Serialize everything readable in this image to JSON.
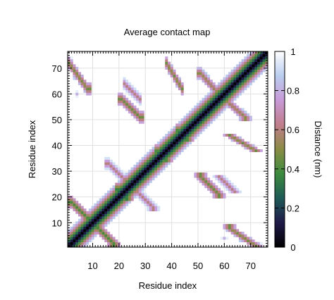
{
  "chart_data": {
    "type": "heatmap",
    "title": "Average contact map",
    "xlabel": "Residue index",
    "ylabel": "Residue index",
    "colorbar_label": "Distance (nm)",
    "xlim": [
      1,
      76
    ],
    "ylim": [
      1,
      76
    ],
    "x_ticks": [
      10,
      20,
      30,
      40,
      50,
      60,
      70
    ],
    "y_ticks": [
      10,
      20,
      30,
      40,
      50,
      60,
      70
    ],
    "colorbar_range": [
      0,
      1
    ],
    "colorbar_ticks": [
      "0",
      "0.2",
      "0.4",
      "0.6",
      "0.8",
      "1"
    ],
    "colorbar_tick_values": [
      0,
      0.2,
      0.4,
      0.6,
      0.8,
      1
    ],
    "colorscale": "cubehelix",
    "colorscale_stops": [
      "#000000",
      "#1f1a48",
      "#1f5a57",
      "#3c8b3e",
      "#8a8c45",
      "#c07d8c",
      "#c89ad7",
      "#b9cdee",
      "#ffffff"
    ],
    "grid": true,
    "symmetric": true,
    "diagonal_distance": 0.0,
    "contact_segments": [
      {
        "i": [
          2,
          9
        ],
        "j": [
          11,
          18
        ],
        "distance": 0.4
      },
      {
        "i": [
          1,
          8
        ],
        "j": [
          62,
          72
        ],
        "distance": 0.45
      },
      {
        "i": [
          16,
          23
        ],
        "j": [
          26,
          33
        ],
        "distance": 0.6
      },
      {
        "i": [
          21,
          28
        ],
        "j": [
          51,
          58
        ],
        "distance": 0.45
      },
      {
        "i": [
          22,
          28
        ],
        "j": [
          58,
          64
        ],
        "distance": 0.6
      },
      {
        "i": [
          51,
          58
        ],
        "j": [
          60,
          68
        ],
        "distance": 0.5
      },
      {
        "i": [
          38,
          44
        ],
        "j": [
          62,
          72
        ],
        "distance": 0.45
      },
      {
        "i": [
          21,
          35
        ],
        "j": [
          23,
          37
        ],
        "distance": 0.35
      },
      {
        "i": [
          35,
          44
        ],
        "j": [
          38,
          47
        ],
        "distance": 0.4
      },
      {
        "i": [
          44,
          58
        ],
        "j": [
          46,
          60
        ],
        "distance": 0.4
      },
      {
        "i": [
          2,
          4
        ],
        "j": [
          60,
          73
        ],
        "distance": 0.8
      }
    ]
  }
}
